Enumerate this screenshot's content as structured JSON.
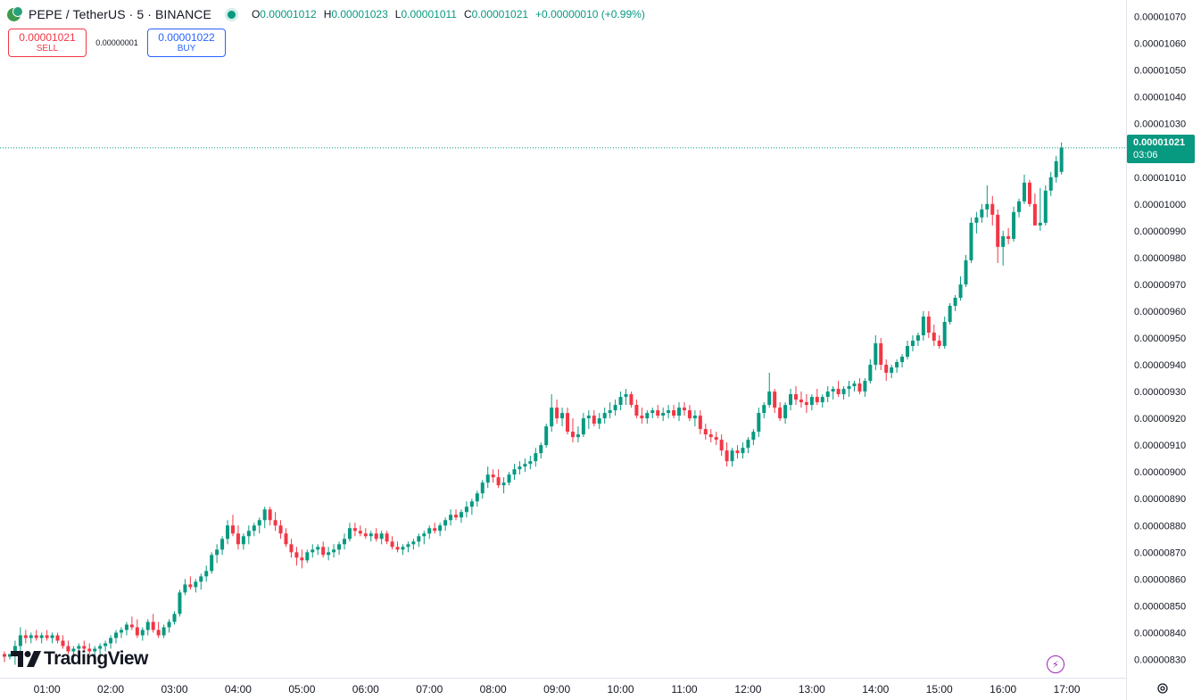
{
  "header": {
    "symbol": "PEPE / TetherUS · 5 · BINANCE",
    "open_label": "O",
    "open_value": "0.00001012",
    "high_label": "H",
    "high_value": "0.00001023",
    "low_label": "L",
    "low_value": "0.00001011",
    "close_label": "C",
    "close_value": "0.00001021",
    "change": "+0.00000010 (+0.99%)"
  },
  "trade": {
    "sell_price": "0.00001021",
    "sell_label": "SELL",
    "spread": "0.00000001",
    "buy_price": "0.00001022",
    "buy_label": "BUY"
  },
  "last_price": {
    "price": "0.00001021",
    "countdown": "03:06"
  },
  "logo": {
    "text": "TradingView"
  },
  "colors": {
    "up": "#089981",
    "down": "#f23645",
    "sell": "#f23645",
    "buy": "#2962ff",
    "accent": "#089981"
  },
  "icons": {
    "coin": "pepe-usdt-coin-icon",
    "status": "market-open-dot-icon",
    "bolt": "lightning-icon",
    "settings": "settings-icon"
  },
  "chart_data": {
    "type": "candlestick",
    "interval": "5",
    "x_tick_labels": [
      "01:00",
      "02:00",
      "03:00",
      "04:00",
      "05:00",
      "06:00",
      "07:00",
      "08:00",
      "09:00",
      "10:00",
      "11:00",
      "12:00",
      "13:00",
      "14:00",
      "15:00",
      "16:00",
      "17:00"
    ],
    "y_tick_labels": [
      "0.00001070",
      "0.00001060",
      "0.00001050",
      "0.00001040",
      "0.00001030",
      "0.00001020",
      "0.00001010",
      "0.00001000",
      "0.00000990",
      "0.00000980",
      "0.00000970",
      "0.00000960",
      "0.00000950",
      "0.00000940",
      "0.00000930",
      "0.00000920",
      "0.00000910",
      "0.00000900",
      "0.00000890",
      "0.00000880",
      "0.00000870",
      "0.00000860",
      "0.00000850",
      "0.00000840",
      "0.00000830"
    ],
    "y_ticks": [
      1070,
      1060,
      1050,
      1040,
      1030,
      1020,
      1010,
      1000,
      990,
      980,
      970,
      960,
      950,
      940,
      930,
      920,
      910,
      900,
      890,
      880,
      870,
      860,
      850,
      840,
      830
    ],
    "ylim": [
      826.5,
      1073.5
    ],
    "y_scale": 1e-08,
    "last_price": 1021,
    "grid": false,
    "candle_columns": [
      "open",
      "high",
      "low",
      "close"
    ],
    "candles": [
      [
        832,
        833,
        829,
        831
      ],
      [
        831,
        832,
        830,
        832
      ],
      [
        832,
        837,
        828,
        835
      ],
      [
        835,
        842,
        830,
        839
      ],
      [
        839,
        841,
        836,
        838
      ],
      [
        838,
        840,
        836,
        839
      ],
      [
        839,
        841,
        837,
        838
      ],
      [
        838,
        840,
        836,
        839
      ],
      [
        839,
        841,
        837,
        838
      ],
      [
        838,
        840,
        836,
        839
      ],
      [
        839,
        840,
        836,
        837
      ],
      [
        837,
        839,
        834,
        835
      ],
      [
        835,
        837,
        832,
        833
      ],
      [
        833,
        835,
        831,
        834
      ],
      [
        834,
        836,
        832,
        835
      ],
      [
        835,
        837,
        833,
        834
      ],
      [
        834,
        836,
        832,
        833
      ],
      [
        833,
        835,
        831,
        834
      ],
      [
        834,
        836,
        832,
        835
      ],
      [
        835,
        837,
        833,
        836
      ],
      [
        836,
        839,
        834,
        838
      ],
      [
        838,
        841,
        836,
        840
      ],
      [
        840,
        842,
        838,
        841
      ],
      [
        841,
        844,
        839,
        843
      ],
      [
        843,
        846,
        841,
        842
      ],
      [
        842,
        845,
        838,
        839
      ],
      [
        839,
        842,
        837,
        841
      ],
      [
        841,
        845,
        839,
        844
      ],
      [
        844,
        847,
        840,
        841
      ],
      [
        841,
        844,
        838,
        839
      ],
      [
        839,
        843,
        838,
        842
      ],
      [
        842,
        845,
        840,
        844
      ],
      [
        844,
        848,
        843,
        847
      ],
      [
        847,
        856,
        846,
        855
      ],
      [
        855,
        860,
        854,
        858
      ],
      [
        858,
        861,
        856,
        857
      ],
      [
        857,
        860,
        855,
        859
      ],
      [
        859,
        862,
        856,
        861
      ],
      [
        861,
        865,
        859,
        863
      ],
      [
        863,
        870,
        862,
        869
      ],
      [
        869,
        873,
        866,
        871
      ],
      [
        871,
        876,
        869,
        875
      ],
      [
        875,
        882,
        873,
        880
      ],
      [
        880,
        884,
        876,
        877
      ],
      [
        877,
        880,
        871,
        873
      ],
      [
        873,
        877,
        871,
        876
      ],
      [
        876,
        880,
        873,
        878
      ],
      [
        878,
        881,
        876,
        880
      ],
      [
        880,
        883,
        877,
        882
      ],
      [
        882,
        887,
        879,
        886
      ],
      [
        886,
        887,
        880,
        882
      ],
      [
        882,
        885,
        878,
        880
      ],
      [
        880,
        882,
        875,
        877
      ],
      [
        877,
        879,
        872,
        873
      ],
      [
        873,
        875,
        868,
        870
      ],
      [
        870,
        872,
        865,
        868
      ],
      [
        868,
        871,
        864,
        867
      ],
      [
        867,
        871,
        866,
        870
      ],
      [
        870,
        873,
        868,
        871
      ],
      [
        871,
        873,
        869,
        872
      ],
      [
        872,
        874,
        868,
        869
      ],
      [
        869,
        872,
        867,
        870
      ],
      [
        870,
        873,
        868,
        871
      ],
      [
        871,
        874,
        869,
        873
      ],
      [
        873,
        877,
        871,
        875
      ],
      [
        875,
        881,
        874,
        879
      ],
      [
        879,
        881,
        876,
        878
      ],
      [
        878,
        880,
        876,
        877
      ],
      [
        877,
        879,
        875,
        876
      ],
      [
        876,
        878,
        874,
        877
      ],
      [
        877,
        879,
        874,
        875
      ],
      [
        875,
        878,
        873,
        877
      ],
      [
        877,
        878,
        873,
        874
      ],
      [
        874,
        876,
        871,
        872
      ],
      [
        872,
        874,
        870,
        871
      ],
      [
        871,
        873,
        869,
        872
      ],
      [
        872,
        874,
        870,
        873
      ],
      [
        873,
        875,
        871,
        874
      ],
      [
        874,
        877,
        872,
        876
      ],
      [
        876,
        878,
        873,
        877
      ],
      [
        877,
        880,
        875,
        879
      ],
      [
        879,
        881,
        877,
        878
      ],
      [
        878,
        881,
        876,
        880
      ],
      [
        880,
        883,
        878,
        882
      ],
      [
        882,
        886,
        880,
        884
      ],
      [
        884,
        886,
        882,
        883
      ],
      [
        883,
        886,
        881,
        885
      ],
      [
        885,
        889,
        883,
        887
      ],
      [
        887,
        890,
        884,
        889
      ],
      [
        889,
        893,
        887,
        892
      ],
      [
        892,
        897,
        890,
        896
      ],
      [
        896,
        902,
        894,
        899
      ],
      [
        899,
        901,
        896,
        898
      ],
      [
        898,
        901,
        894,
        895
      ],
      [
        895,
        898,
        892,
        896
      ],
      [
        896,
        900,
        895,
        899
      ],
      [
        899,
        903,
        897,
        901
      ],
      [
        901,
        904,
        899,
        902
      ],
      [
        902,
        905,
        900,
        903
      ],
      [
        903,
        906,
        901,
        904
      ],
      [
        904,
        909,
        902,
        907
      ],
      [
        907,
        911,
        905,
        910
      ],
      [
        910,
        918,
        909,
        917
      ],
      [
        917,
        929,
        915,
        924
      ],
      [
        924,
        927,
        918,
        920
      ],
      [
        920,
        924,
        917,
        922
      ],
      [
        922,
        924,
        914,
        915
      ],
      [
        915,
        920,
        911,
        913
      ],
      [
        913,
        917,
        911,
        914
      ],
      [
        914,
        922,
        913,
        920
      ],
      [
        920,
        923,
        916,
        921
      ],
      [
        921,
        923,
        917,
        918
      ],
      [
        918,
        922,
        916,
        920
      ],
      [
        920,
        924,
        918,
        922
      ],
      [
        922,
        926,
        920,
        923
      ],
      [
        923,
        927,
        921,
        925
      ],
      [
        925,
        930,
        923,
        928
      ],
      [
        928,
        931,
        925,
        929
      ],
      [
        929,
        930,
        924,
        925
      ],
      [
        925,
        927,
        920,
        921
      ],
      [
        921,
        924,
        918,
        920
      ],
      [
        920,
        923,
        918,
        922
      ],
      [
        922,
        924,
        920,
        923
      ],
      [
        923,
        925,
        920,
        921
      ],
      [
        921,
        924,
        919,
        922
      ],
      [
        922,
        925,
        920,
        923
      ],
      [
        923,
        925,
        920,
        921
      ],
      [
        921,
        926,
        919,
        924
      ],
      [
        924,
        926,
        921,
        923
      ],
      [
        923,
        925,
        919,
        920
      ],
      [
        920,
        923,
        917,
        921
      ],
      [
        921,
        923,
        914,
        916
      ],
      [
        916,
        918,
        912,
        914
      ],
      [
        914,
        916,
        911,
        913
      ],
      [
        913,
        915,
        910,
        912
      ],
      [
        912,
        914,
        906,
        908
      ],
      [
        908,
        911,
        902,
        904
      ],
      [
        904,
        909,
        902,
        908
      ],
      [
        908,
        910,
        905,
        907
      ],
      [
        907,
        911,
        905,
        909
      ],
      [
        909,
        913,
        907,
        912
      ],
      [
        912,
        916,
        910,
        915
      ],
      [
        915,
        924,
        913,
        922
      ],
      [
        922,
        926,
        920,
        925
      ],
      [
        925,
        937,
        924,
        930
      ],
      [
        930,
        931,
        922,
        924
      ],
      [
        924,
        926,
        919,
        920
      ],
      [
        920,
        926,
        918,
        925
      ],
      [
        925,
        931,
        923,
        929
      ],
      [
        929,
        932,
        925,
        927
      ],
      [
        927,
        930,
        924,
        926
      ],
      [
        926,
        929,
        922,
        925
      ],
      [
        925,
        929,
        923,
        928
      ],
      [
        928,
        931,
        925,
        926
      ],
      [
        926,
        929,
        924,
        928
      ],
      [
        928,
        932,
        926,
        930
      ],
      [
        930,
        932,
        927,
        931
      ],
      [
        931,
        934,
        928,
        929
      ],
      [
        929,
        932,
        927,
        931
      ],
      [
        931,
        934,
        928,
        932
      ],
      [
        932,
        934,
        930,
        933
      ],
      [
        933,
        935,
        929,
        930
      ],
      [
        930,
        935,
        928,
        934
      ],
      [
        934,
        942,
        933,
        940
      ],
      [
        940,
        951,
        938,
        948
      ],
      [
        948,
        950,
        938,
        940
      ],
      [
        940,
        942,
        934,
        937
      ],
      [
        937,
        940,
        935,
        939
      ],
      [
        939,
        942,
        937,
        941
      ],
      [
        941,
        944,
        939,
        943
      ],
      [
        943,
        949,
        942,
        947
      ],
      [
        947,
        951,
        945,
        949
      ],
      [
        949,
        952,
        947,
        951
      ],
      [
        951,
        960,
        949,
        958
      ],
      [
        958,
        960,
        950,
        952
      ],
      [
        952,
        955,
        947,
        949
      ],
      [
        949,
        951,
        946,
        947
      ],
      [
        947,
        958,
        946,
        956
      ],
      [
        956,
        963,
        955,
        962
      ],
      [
        962,
        966,
        960,
        965
      ],
      [
        965,
        973,
        964,
        970
      ],
      [
        970,
        981,
        969,
        979
      ],
      [
        979,
        995,
        978,
        993
      ],
      [
        993,
        997,
        989,
        995
      ],
      [
        995,
        1000,
        993,
        998
      ],
      [
        998,
        1007,
        995,
        1000
      ],
      [
        1000,
        1003,
        992,
        996
      ],
      [
        996,
        998,
        978,
        984
      ],
      [
        984,
        990,
        977,
        988
      ],
      [
        988,
        991,
        985,
        987
      ],
      [
        987,
        999,
        986,
        997
      ],
      [
        997,
        1002,
        995,
        1001
      ],
      [
        1001,
        1011,
        1000,
        1008
      ],
      [
        1008,
        1009,
        999,
        1000
      ],
      [
        1000,
        1004,
        992,
        992
      ],
      [
        992,
        1006,
        990,
        993
      ],
      [
        993,
        1007,
        992,
        1005
      ],
      [
        1005,
        1012,
        1003,
        1010
      ],
      [
        1010,
        1018,
        1008,
        1016
      ],
      [
        1012,
        1023,
        1011,
        1021
      ]
    ]
  }
}
